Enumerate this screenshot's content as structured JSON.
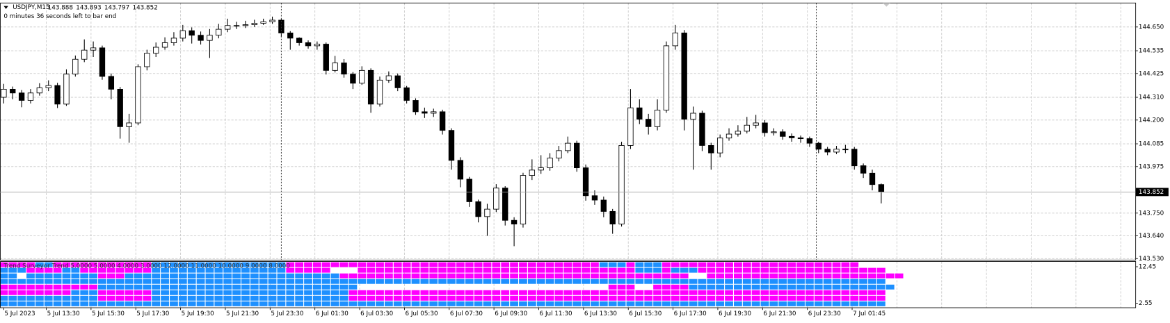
{
  "chart_data": {
    "type": "candlestick",
    "title": "USDJPY,M15",
    "status": "0 minutes 36 seconds left to bar end",
    "candles": [
      [
        144.31,
        144.375,
        144.28,
        144.349
      ],
      [
        144.349,
        144.362,
        144.3,
        144.331
      ],
      [
        144.331,
        144.345,
        144.262,
        144.295
      ],
      [
        144.295,
        144.35,
        144.28,
        144.331
      ],
      [
        144.331,
        144.378,
        144.318,
        144.356
      ],
      [
        144.356,
        144.392,
        144.34,
        144.367
      ],
      [
        144.367,
        144.38,
        144.258,
        144.277
      ],
      [
        144.277,
        144.445,
        144.268,
        144.422
      ],
      [
        144.422,
        144.512,
        144.41,
        144.494
      ],
      [
        144.494,
        144.59,
        144.48,
        144.538
      ],
      [
        144.538,
        144.58,
        144.505,
        144.549
      ],
      [
        144.549,
        144.56,
        144.395,
        144.411
      ],
      [
        144.411,
        144.425,
        144.3,
        144.349
      ],
      [
        144.349,
        144.36,
        144.11,
        144.168
      ],
      [
        144.168,
        144.23,
        144.09,
        144.186
      ],
      [
        144.186,
        144.47,
        144.175,
        144.458
      ],
      [
        144.458,
        144.54,
        144.44,
        144.523
      ],
      [
        144.523,
        144.575,
        144.505,
        144.552
      ],
      [
        144.552,
        144.6,
        144.54,
        144.574
      ],
      [
        144.574,
        144.625,
        144.56,
        144.596
      ],
      [
        144.596,
        144.66,
        144.58,
        144.632
      ],
      [
        144.632,
        144.648,
        144.57,
        144.61
      ],
      [
        144.61,
        144.628,
        144.565,
        144.585
      ],
      [
        144.585,
        144.64,
        144.5,
        144.61
      ],
      [
        144.61,
        144.665,
        144.595,
        144.639
      ],
      [
        144.639,
        144.69,
        144.625,
        144.657
      ],
      [
        144.657,
        144.675,
        144.64,
        144.657
      ],
      [
        144.657,
        144.68,
        144.645,
        144.661
      ],
      [
        144.661,
        144.685,
        144.65,
        144.668
      ],
      [
        144.668,
        144.69,
        144.66,
        144.675
      ],
      [
        144.675,
        144.7,
        144.665,
        144.683
      ],
      [
        144.683,
        144.69,
        144.6,
        144.621
      ],
      [
        144.621,
        144.63,
        144.54,
        144.596
      ],
      [
        144.596,
        144.6,
        144.56,
        144.574
      ],
      [
        144.574,
        144.585,
        144.545,
        144.559
      ],
      [
        144.559,
        144.58,
        144.54,
        144.567
      ],
      [
        144.567,
        144.575,
        144.42,
        144.44
      ],
      [
        144.44,
        144.51,
        144.43,
        144.476
      ],
      [
        144.476,
        144.495,
        144.405,
        144.422
      ],
      [
        144.422,
        144.432,
        144.35,
        144.378
      ],
      [
        144.378,
        144.46,
        144.37,
        144.44
      ],
      [
        144.44,
        144.45,
        144.235,
        144.277
      ],
      [
        144.277,
        144.41,
        144.265,
        144.393
      ],
      [
        144.393,
        144.435,
        144.38,
        144.414
      ],
      [
        144.414,
        144.425,
        144.34,
        144.356
      ],
      [
        144.356,
        144.365,
        144.28,
        144.295
      ],
      [
        144.295,
        144.305,
        144.225,
        144.24
      ],
      [
        144.24,
        144.26,
        144.21,
        144.233
      ],
      [
        144.233,
        144.255,
        144.215,
        144.24
      ],
      [
        144.24,
        144.25,
        144.13,
        144.15
      ],
      [
        144.15,
        144.16,
        143.96,
        144.005
      ],
      [
        144.005,
        144.02,
        143.875,
        143.914
      ],
      [
        143.914,
        143.925,
        143.78,
        143.805
      ],
      [
        143.805,
        143.815,
        143.705,
        143.733
      ],
      [
        143.733,
        143.795,
        143.64,
        143.769
      ],
      [
        143.769,
        143.89,
        143.755,
        143.871
      ],
      [
        143.871,
        143.88,
        143.69,
        143.715
      ],
      [
        143.715,
        143.73,
        143.59,
        143.697
      ],
      [
        143.697,
        143.945,
        143.68,
        143.932
      ],
      [
        143.932,
        144.01,
        143.91,
        143.958
      ],
      [
        143.958,
        144.03,
        143.94,
        143.969
      ],
      [
        143.969,
        144.04,
        143.955,
        144.016
      ],
      [
        144.016,
        144.075,
        144.0,
        144.052
      ],
      [
        144.052,
        144.12,
        144.04,
        144.088
      ],
      [
        144.088,
        144.1,
        143.95,
        143.969
      ],
      [
        143.969,
        143.985,
        143.81,
        143.834
      ],
      [
        143.834,
        143.86,
        143.79,
        143.813
      ],
      [
        143.813,
        143.83,
        143.73,
        143.758
      ],
      [
        143.758,
        143.77,
        143.65,
        143.697
      ],
      [
        143.697,
        144.095,
        143.685,
        144.077
      ],
      [
        144.077,
        144.35,
        144.06,
        144.259
      ],
      [
        144.259,
        144.3,
        144.18,
        144.204
      ],
      [
        144.204,
        144.23,
        144.13,
        144.168
      ],
      [
        144.168,
        144.3,
        144.15,
        144.248
      ],
      [
        144.248,
        144.58,
        144.235,
        144.559
      ],
      [
        144.559,
        144.66,
        144.54,
        144.621
      ],
      [
        144.621,
        144.635,
        144.15,
        144.204
      ],
      [
        144.204,
        144.265,
        143.96,
        144.233
      ],
      [
        144.233,
        144.245,
        144.05,
        144.077
      ],
      [
        144.077,
        144.09,
        143.96,
        144.041
      ],
      [
        144.041,
        144.13,
        144.02,
        144.113
      ],
      [
        144.113,
        144.16,
        144.1,
        144.132
      ],
      [
        144.132,
        144.175,
        144.12,
        144.146
      ],
      [
        144.146,
        144.215,
        144.135,
        144.175
      ],
      [
        144.175,
        144.225,
        144.16,
        144.186
      ],
      [
        144.186,
        144.2,
        144.12,
        144.139
      ],
      [
        144.139,
        144.16,
        144.125,
        144.143
      ],
      [
        144.143,
        144.155,
        144.105,
        144.121
      ],
      [
        144.121,
        144.135,
        144.095,
        144.114
      ],
      [
        144.114,
        144.125,
        144.09,
        144.11
      ],
      [
        144.11,
        144.12,
        144.07,
        144.088
      ],
      [
        144.088,
        144.095,
        144.04,
        144.059
      ],
      [
        144.059,
        144.07,
        144.03,
        144.045
      ],
      [
        144.045,
        144.075,
        144.035,
        144.059
      ],
      [
        144.059,
        144.08,
        144.04,
        144.059
      ],
      [
        144.059,
        144.07,
        143.96,
        143.979
      ],
      [
        143.979,
        143.99,
        143.92,
        143.943
      ],
      [
        143.943,
        143.96,
        143.86,
        143.888
      ],
      [
        143.888,
        143.893,
        143.797,
        143.852
      ]
    ],
    "current_price": 143.852,
    "ylim": [
      143.523,
      144.766
    ],
    "yticks": [
      {
        "value": 144.65,
        "label": "144.650"
      },
      144.535,
      144.425,
      {
        "value": 144.31,
        "label": "144.310"
      },
      {
        "value": 144.2,
        "label": "144.200"
      },
      144.085,
      143.975,
      {
        "value": 143.75,
        "label": "143.750"
      },
      {
        "value": 143.64,
        "label": "143.640"
      },
      {
        "value": 143.53,
        "label": "143.530"
      }
    ],
    "grid": true,
    "x_labels": [
      "5 Jul 2023",
      "5 Jul 13:30",
      "5 Jul 15:30",
      "5 Jul 17:30",
      "5 Jul 19:30",
      "5 Jul 21:30",
      "5 Jul 23:30",
      "6 Jul 01:30",
      "6 Jul 03:30",
      "6 Jul 05:30",
      "6 Jul 07:30",
      "6 Jul 09:30",
      "6 Jul 11:30",
      "6 Jul 13:30",
      "6 Jul 15:30",
      "6 Jul 17:30",
      "6 Jul 19:30",
      "6 Jul 21:30",
      "6 Jul 23:30",
      "7 Jul 01:45"
    ],
    "bull_color": "#ffffff",
    "bear_color": "#000000",
    "indicator": {
      "title": "Trend Surveyor Trend 5.0000 5.0000 4.0000 3.0000 12.0000 11.0000 10.0000 9.0000 8.0000",
      "ylim": [
        1.34,
        13.86
      ],
      "yticks": [
        12.45,
        2.55
      ],
      "colors": {
        "b": "#1e90ff",
        "m": "#ff00ff",
        "w": "#ffffff"
      },
      "rows": [
        "mmmmbbmmmmmmmmmmmbbbbbbbbbbbbbbbmmmmmmmmmmmmmmmmmmmmmmmmmmmmmmmmmmmbbbmbbbmmmmmmmmmmmmmmmmmmmmmm",
        "bbbmmmmbbmmmmmmmmbbbbbbbbbbbbbbbmmmmmwwwmmmmmmmmmmmmmmmmmmmmmmmmmmmmmmmbbbmbbbmmmmmmmmmmmmmmmmmmmmm",
        "bbwbbbbbbbbmmmbbbbbbbbbbbbbbbbbbbbbbbbmmmmmmmmmmmmmmmmmmmmmmmmmmmmmmmmmmmmmmmwwmmmmmmmmmmmmmmmmmmmmmm",
        "bbbbbbbbbbbbbbbbbbbbbbbbbbbbbbbbbbbbbbbbbbbbbbbbbbbbbbbbbbbbbbbbbbbbbbbbbbbbbbbbbbbbbbbbbbbbbbbbbbb",
        "mmmmmmmmmmmbbbbbbbbbbbbbbbbbbbbbbbbbbbbbwwwwwwwwwwwwwwwwwwwwwwwwwwwwmmmwwmmmmbbbbbbbbbbbbbbbbbbbbbbb",
        "mmmmmmmmbbbmmmmmmbbbbbbbbbbbbbbbbbbbbbbmmmmmmmmmmmmmmmmmmmmmmmmmmmmmmmmmmmmmmmmmmmmmmmmmmmmmmmmmmmm",
        "bbbbbbbbbbbmmmmmmbbbbbbbbbbbbbbbbbbbbbbmmmmmmmmmmmmmmmmmmmmmmmmmmmmmmmmmmmmmmmmmmmmmmmmmmmmmmmmmmmm",
        "bbbbbbbbbbbbbbbbbbbbbbbbbbbbbbbbbbbbbbbbbbbbbbbbbbbbbbbbbbbbbbbbbbbbbbbbbbbbbbbbbbbbbbbbbbbbbbbbbbb"
      ]
    }
  }
}
